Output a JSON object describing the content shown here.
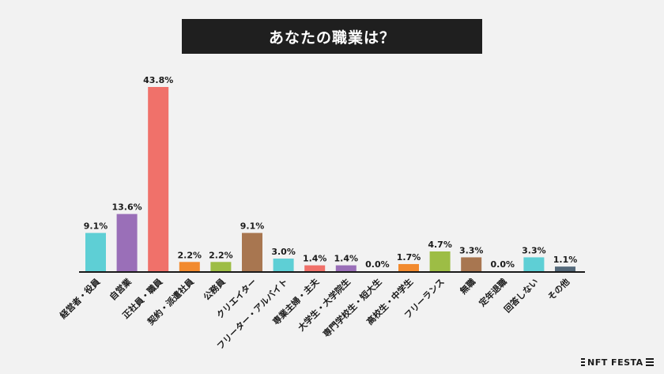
{
  "chart_data": {
    "type": "bar",
    "title": "あなたの職業は？",
    "categories": [
      "経営者・役員",
      "自営業",
      "正社員・職員",
      "契約・派遣社員",
      "公務員",
      "クリエイター",
      "フリーター・アルバイト",
      "専業主婦・主夫",
      "大学生・大学院生",
      "専門学校生・短大生",
      "高校生・中学生",
      "フリーランス",
      "無職",
      "定年退職",
      "回答しない",
      "その他"
    ],
    "values": [
      9.1,
      13.6,
      43.8,
      2.2,
      2.2,
      9.1,
      3.0,
      1.4,
      1.4,
      0.0,
      1.7,
      4.7,
      3.3,
      0.0,
      3.3,
      1.1
    ],
    "value_labels": [
      "9.1%",
      "13.6%",
      "43.8%",
      "2.2%",
      "2.2%",
      "9.1%",
      "3.0%",
      "1.4%",
      "1.4%",
      "0.0%",
      "1.7%",
      "4.7%",
      "3.3%",
      "0.0%",
      "3.3%",
      "1.1%"
    ],
    "colors": [
      "#5ecfd5",
      "#9a6fb8",
      "#f0716a",
      "#f28a2e",
      "#9dbd45",
      "#a87650",
      "#5ecfd5",
      "#f0716a",
      "#9a6fb8",
      "#5ecfd5",
      "#f28a2e",
      "#9dbd45",
      "#a87650",
      "#5ecfd5",
      "#5ecfd5",
      "#54697a"
    ],
    "xlabel": "",
    "ylabel": "",
    "ylim": [
      0,
      45
    ],
    "grid": false,
    "legend": "none"
  },
  "brand": {
    "logo_text": "NFT FESTA"
  }
}
